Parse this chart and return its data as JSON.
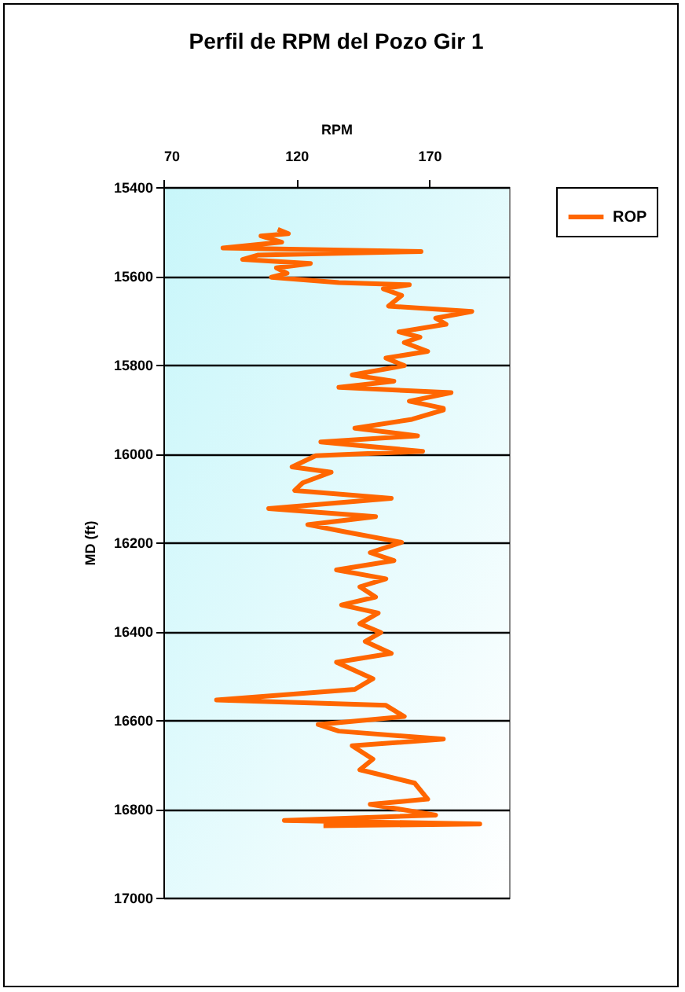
{
  "chart_data": {
    "type": "line",
    "title": "Perfil de RPM del Pozo Gir 1",
    "xlabel": "RPM",
    "ylabel": "MD (ft)",
    "xlim": [
      70,
      200
    ],
    "xticks": [
      70,
      120,
      170
    ],
    "ylim": [
      17000,
      15400
    ],
    "yticks": [
      15400,
      15600,
      15800,
      16000,
      16200,
      16400,
      16600,
      16800,
      17000
    ],
    "grid": "y",
    "legend": "right",
    "line_style": "solid",
    "marker": "none",
    "series": [
      {
        "name": "ROP",
        "color": "#ff6600",
        "x": [
          113,
          117,
          106.7,
          114.5,
          92.4,
          166.9,
          105.7,
          99.8,
          125.3,
          112.5,
          116.5,
          110.6,
          136,
          162.5,
          152.7,
          159.6,
          154.7,
          186,
          172.4,
          176.3,
          158.6,
          166.5,
          160.6,
          169.4,
          153.7,
          160.6,
          141,
          156.7,
          136,
          178.2,
          162.5,
          175.3,
          175.3,
          163.5,
          142,
          165.6,
          129.2,
          167.5,
          127.3,
          118.4,
          133.1,
          122.4,
          119.4,
          155.7,
          109.6,
          149.8,
          124.3,
          139,
          159.6,
          147.8,
          156.7,
          135.1,
          153.7,
          143.9,
          149.8,
          137,
          150.8,
          143.9,
          151.8,
          145.9,
          155.7,
          135.1,
          148.8,
          142,
          90,
          153.7,
          160.6,
          128.2,
          136,
          175.3,
          141,
          148.8,
          143.9,
          164.5,
          169.4,
          147.8,
          172.4,
          115.5,
          189,
          130.2
        ],
        "values": [
          15495,
          15505,
          15510,
          15524,
          15537,
          15545,
          15553,
          15563,
          15572,
          15582,
          15594,
          15603,
          15615,
          15620,
          15629,
          15644,
          15668,
          15680,
          15695,
          15709,
          15726,
          15738,
          15750,
          15770,
          15785,
          15802,
          15823,
          15837,
          15851,
          15863,
          15882,
          15898,
          15902,
          15923,
          15943,
          15960,
          15974,
          15995,
          16005,
          16030,
          16042,
          16066,
          16083,
          16101,
          16124,
          16142,
          16160,
          16177,
          16200,
          16223,
          16241,
          16262,
          16282,
          16300,
          16323,
          16341,
          16359,
          16383,
          16403,
          16423,
          16450,
          16470,
          16507,
          16531,
          16555,
          16567,
          16592,
          16610,
          16625,
          16643,
          16658,
          16688,
          16712,
          16742,
          16778,
          16790,
          16814,
          16826,
          16834,
          16838
        ]
      }
    ]
  }
}
